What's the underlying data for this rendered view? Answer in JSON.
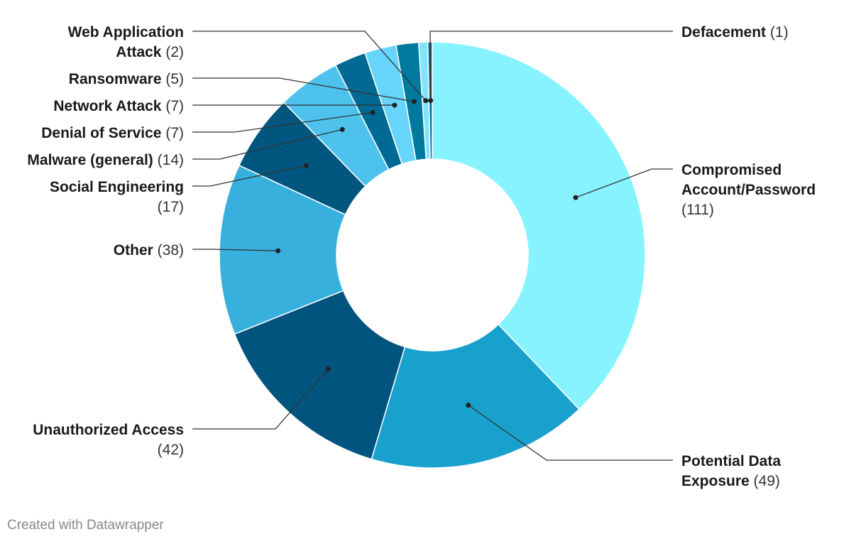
{
  "chart_data": {
    "type": "pie",
    "variant": "donut",
    "start_angle_deg": 0,
    "slices": [
      {
        "name": "Compromised Account/Password",
        "value": 111,
        "color": "#86f3fe",
        "label_lines": [
          [
            "Compromised"
          ],
          [
            "Account/Password"
          ],
          [
            "",
            "(111)"
          ]
        ],
        "side": "right"
      },
      {
        "name": "Potential Data Exposure",
        "value": 49,
        "color": "#18a1cd",
        "label_lines": [
          [
            "Potential Data"
          ],
          [
            "Exposure",
            "(49)"
          ]
        ],
        "side": "right"
      },
      {
        "name": "Unauthorized Access",
        "value": 42,
        "color": "#01547e",
        "label_lines": [
          [
            "Unauthorized Access"
          ],
          [
            "",
            "(42)"
          ]
        ],
        "side": "left"
      },
      {
        "name": "Other",
        "value": 38,
        "color": "#38b0de",
        "label_lines": [
          [
            "Other",
            "(38)"
          ]
        ],
        "side": "left"
      },
      {
        "name": "Social Engineering",
        "value": 17,
        "color": "#00567f",
        "label_lines": [
          [
            "Social Engineering"
          ],
          [
            "",
            "(17)"
          ]
        ],
        "side": "left"
      },
      {
        "name": "Malware (general)",
        "value": 14,
        "color": "#4cc2ed",
        "label_lines": [
          [
            "Malware (general)",
            "(14)"
          ]
        ],
        "side": "left"
      },
      {
        "name": "Denial of Service",
        "value": 7,
        "color": "#006a94",
        "label_lines": [
          [
            "Denial of Service",
            "(7)"
          ]
        ],
        "side": "left"
      },
      {
        "name": "Network Attack",
        "value": 7,
        "color": "#66d4fb",
        "label_lines": [
          [
            "Network Attack",
            "(7)"
          ]
        ],
        "side": "left"
      },
      {
        "name": "Ransomware",
        "value": 5,
        "color": "#00799f",
        "label_lines": [
          [
            "Ransomware",
            "(5)"
          ]
        ],
        "side": "left"
      },
      {
        "name": "Web Application Attack",
        "value": 2,
        "color": "#82e4fc",
        "label_lines": [
          [
            "Web Application"
          ],
          [
            "Attack",
            "(2)"
          ]
        ],
        "side": "left"
      },
      {
        "name": "Defacement",
        "value": 1,
        "color": "#0c6f99",
        "label_lines": [
          [
            "Defacement",
            "(1)"
          ]
        ],
        "side": "right"
      }
    ],
    "title": "",
    "legend": "none"
  },
  "footer": {
    "credit": "Created with Datawrapper"
  }
}
